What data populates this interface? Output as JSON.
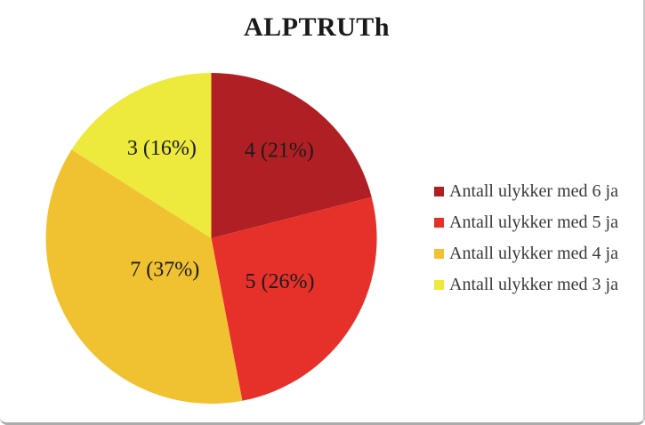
{
  "chart_data": {
    "type": "pie",
    "title": "ALPTRUTh",
    "start_angle_deg": 0,
    "direction": "clockwise",
    "legend_position": "right",
    "label_color": "#1C1C1C",
    "legend_text_color": "#3A3A3A",
    "slices": [
      {
        "value": 4,
        "percent": 21,
        "data_label": "4 (21%)",
        "legend_label": "Antall ulykker med 6 ja",
        "color": "#B01F24",
        "label_r": 0.67
      },
      {
        "value": 5,
        "percent": 26,
        "data_label": "5 (26%)",
        "legend_label": "Antall ulykker med 5 ja",
        "color": "#E6312B",
        "label_r": 0.49
      },
      {
        "value": 7,
        "percent": 37,
        "data_label": "7 (37%)",
        "legend_label": "Antall ulykker med 4 ja",
        "color": "#F0C232",
        "label_r": 0.34
      },
      {
        "value": 3,
        "percent": 16,
        "data_label": "3 (16%)",
        "legend_label": "Antall ulykker med 3 ja",
        "color": "#EDE93D",
        "label_r": 0.62
      }
    ]
  }
}
